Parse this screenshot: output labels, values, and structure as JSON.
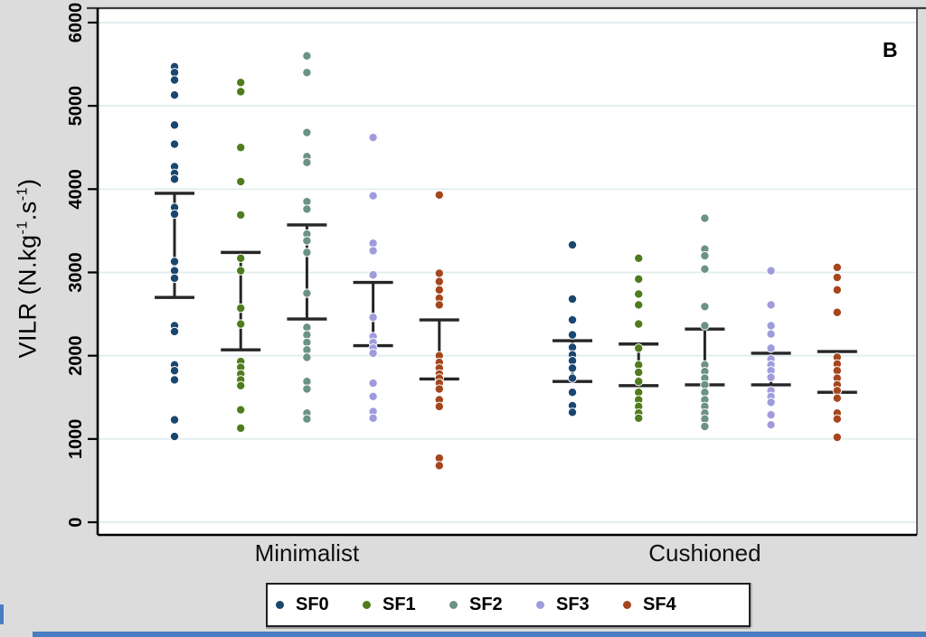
{
  "panel_label": "B",
  "y_axis": {
    "title_prefix": "VILR (N.kg",
    "title_sup1": "-1",
    "title_mid": ".s",
    "title_sup2": "-1",
    "title_suffix": ")"
  },
  "colors": {
    "background": "#dcdcdc",
    "plot_background": "#ffffff",
    "gridline": "#dfecee",
    "axis": "#000000",
    "error_bar": "#262626",
    "accent_strip": "#4a7cc2"
  },
  "chart_data": {
    "type": "scatter",
    "title": "",
    "xlabel": "",
    "ylabel": "VILR (N.kg-1.s-1)",
    "ylim": [
      0,
      6300
    ],
    "grid": true,
    "legend_position": "bottom",
    "y_ticks": [
      0,
      1000,
      2000,
      3000,
      4000,
      5000,
      6000
    ],
    "groups": [
      "Minimalist",
      "Cushioned"
    ],
    "legend": [
      {
        "label": "SF0",
        "color": "#1a476f"
      },
      {
        "label": "SF1",
        "color": "#4f7d1d"
      },
      {
        "label": "SF2",
        "color": "#6b9384"
      },
      {
        "label": "SF3",
        "color": "#a09cdc"
      },
      {
        "label": "SF4",
        "color": "#a5461e"
      }
    ],
    "series": [
      {
        "group": "Minimalist",
        "name": "SF0",
        "values": [
          5470,
          5400,
          5310,
          5130,
          4770,
          4540,
          4270,
          4190,
          4120,
          3780,
          3700,
          3130,
          3020,
          2930,
          2360,
          2290,
          1890,
          1820,
          1710,
          1230,
          1030
        ],
        "bar": [
          2700,
          3950
        ]
      },
      {
        "group": "Minimalist",
        "name": "SF1",
        "values": [
          5280,
          5170,
          4500,
          4090,
          3690,
          3170,
          3020,
          2570,
          2380,
          1930,
          1860,
          1780,
          1710,
          1640,
          1350,
          1130
        ],
        "bar": [
          2070,
          3240
        ]
      },
      {
        "group": "Minimalist",
        "name": "SF2",
        "values": [
          5600,
          5400,
          4680,
          4390,
          4320,
          3850,
          3760,
          3460,
          3380,
          3240,
          2750,
          2340,
          2250,
          2160,
          2070,
          1980,
          1690,
          1600,
          1310,
          1240
        ],
        "bar": [
          2440,
          3570
        ]
      },
      {
        "group": "Minimalist",
        "name": "SF3",
        "values": [
          4620,
          3920,
          3350,
          3260,
          2970,
          2460,
          2230,
          2160,
          2090,
          2030,
          1670,
          1510,
          1330,
          1250
        ],
        "bar": [
          2120,
          2880
        ]
      },
      {
        "group": "Minimalist",
        "name": "SF4",
        "values": [
          3930,
          2990,
          2890,
          2790,
          2690,
          2610,
          2000,
          1920,
          1850,
          1780,
          1730,
          1670,
          1600,
          1470,
          1390,
          770,
          680
        ],
        "bar": [
          1720,
          2430
        ]
      },
      {
        "group": "Cushioned",
        "name": "SF0",
        "values": [
          3330,
          2680,
          2430,
          2250,
          2100,
          2010,
          1940,
          1850,
          1730,
          1560,
          1400,
          1320
        ],
        "bar": [
          1690,
          2180
        ]
      },
      {
        "group": "Cushioned",
        "name": "SF1",
        "values": [
          3170,
          2920,
          2740,
          2610,
          2380,
          2090,
          1890,
          1800,
          1690,
          1560,
          1470,
          1390,
          1310,
          1250
        ],
        "bar": [
          1640,
          2140
        ]
      },
      {
        "group": "Cushioned",
        "name": "SF2",
        "values": [
          3650,
          3280,
          3200,
          3040,
          2590,
          2360,
          1890,
          1810,
          1730,
          1650,
          1560,
          1470,
          1390,
          1310,
          1240,
          1150
        ],
        "bar": [
          1650,
          2320
        ]
      },
      {
        "group": "Cushioned",
        "name": "SF3",
        "values": [
          3020,
          2610,
          2360,
          2260,
          2090,
          1960,
          1890,
          1820,
          1740,
          1580,
          1510,
          1440,
          1290,
          1170
        ],
        "bar": [
          1650,
          2030
        ]
      },
      {
        "group": "Cushioned",
        "name": "SF4",
        "values": [
          3060,
          2940,
          2790,
          2520,
          1980,
          1900,
          1820,
          1730,
          1650,
          1580,
          1490,
          1310,
          1240,
          1020
        ],
        "bar": [
          1560,
          2050
        ]
      }
    ]
  }
}
